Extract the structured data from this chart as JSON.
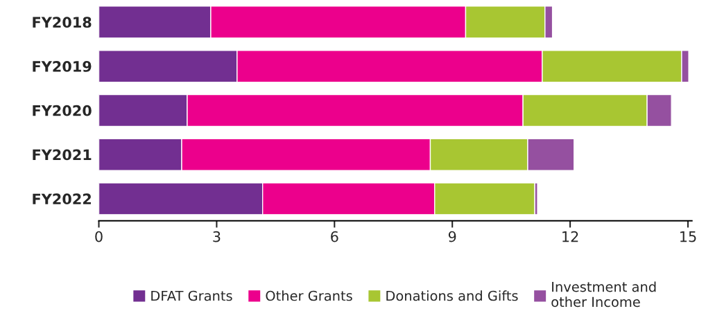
{
  "chart_data": {
    "type": "bar",
    "orientation": "horizontal",
    "stacked": true,
    "categories": [
      "FY2018",
      "FY2019",
      "FY2020",
      "FY2021",
      "FY2022"
    ],
    "series": [
      {
        "name": "DFAT Grants",
        "color": "#722f91",
        "values": [
          2.85,
          3.52,
          2.25,
          2.11,
          4.17
        ]
      },
      {
        "name": "Other Grants",
        "color": "#ec008c",
        "values": [
          6.49,
          7.77,
          8.55,
          6.33,
          4.38
        ]
      },
      {
        "name": "Donations and Gifts",
        "color": "#a8c632",
        "values": [
          2.02,
          3.55,
          3.16,
          2.48,
          2.55
        ]
      },
      {
        "name": "Investment and\nother Income",
        "color": "#9550a0",
        "values": [
          0.19,
          0.18,
          0.62,
          1.18,
          0.07
        ]
      }
    ],
    "xlim": [
      0,
      15.1
    ],
    "xticks": [
      0,
      3,
      6,
      9,
      12,
      15
    ],
    "grid": false,
    "legend": "bottom"
  }
}
